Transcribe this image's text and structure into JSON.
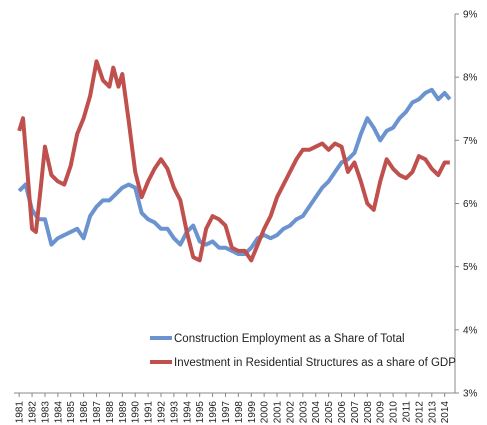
{
  "chart_data": {
    "type": "line",
    "series": [
      {
        "name": "Construction Employment as a Share of Total",
        "color": "#6b93d0",
        "x": [
          1981,
          1981.5,
          1982,
          1982.5,
          1983,
          1983.5,
          1984,
          1984.5,
          1985,
          1985.5,
          1986,
          1986.5,
          1987,
          1987.5,
          1988,
          1988.5,
          1989,
          1989.5,
          1990,
          1990.5,
          1991,
          1991.5,
          1992,
          1992.5,
          1993,
          1993.5,
          1994,
          1994.5,
          1995,
          1995.5,
          1996,
          1996.5,
          1997,
          1997.5,
          1998,
          1998.5,
          1999,
          1999.5,
          2000,
          2000.5,
          2001,
          2001.5,
          2002,
          2002.5,
          2003,
          2003.5,
          2004,
          2004.5,
          2005,
          2005.5,
          2006,
          2006.5,
          2007,
          2007.5,
          2008,
          2008.5,
          2009,
          2009.5,
          2010,
          2010.5,
          2011,
          2011.5,
          2012,
          2012.5,
          2013,
          2013.5,
          2014,
          2014.4
        ],
        "values": [
          6.2,
          6.3,
          5.9,
          5.75,
          5.75,
          5.35,
          5.45,
          5.5,
          5.55,
          5.6,
          5.45,
          5.8,
          5.95,
          6.05,
          6.05,
          6.15,
          6.25,
          6.3,
          6.25,
          5.85,
          5.75,
          5.7,
          5.6,
          5.6,
          5.45,
          5.35,
          5.55,
          5.65,
          5.4,
          5.35,
          5.4,
          5.3,
          5.3,
          5.25,
          5.2,
          5.2,
          5.3,
          5.45,
          5.5,
          5.45,
          5.5,
          5.6,
          5.65,
          5.75,
          5.8,
          5.95,
          6.1,
          6.25,
          6.35,
          6.5,
          6.65,
          6.7,
          6.8,
          7.1,
          7.35,
          7.2,
          7.0,
          7.15,
          7.2,
          7.35,
          7.45,
          7.6,
          7.65,
          7.75,
          7.8,
          7.65,
          7.75,
          7.65
        ]
      },
      {
        "name": "Investment in Residential Structures as a share of GDP",
        "color": "#c0504d",
        "x": [
          1981,
          1981.3,
          1981.6,
          1982,
          1982.3,
          1982.7,
          1983,
          1983.5,
          1984,
          1984.5,
          1985,
          1985.5,
          1986,
          1986.5,
          1987,
          1987.5,
          1988,
          1988.3,
          1988.7,
          1989,
          1989.5,
          1990,
          1990.5,
          1991,
          1991.5,
          1992,
          1992.5,
          1993,
          1993.5,
          1994,
          1994.5,
          1995,
          1995.5,
          1996,
          1996.5,
          1997,
          1997.5,
          1998,
          1998.5,
          1999,
          1999.5,
          2000,
          2000.5,
          2001,
          2001.5,
          2002,
          2002.5,
          2003,
          2003.5,
          2004,
          2004.5,
          2005,
          2005.5,
          2006,
          2006.5,
          2007,
          2007.5,
          2008,
          2008.5,
          2009,
          2009.5,
          2010,
          2010.5,
          2011,
          2011.5,
          2012,
          2012.5,
          2013,
          2013.5,
          2014,
          2014.4
        ],
        "values": [
          7.15,
          7.35,
          6.6,
          5.6,
          5.55,
          6.3,
          6.9,
          6.45,
          6.35,
          6.3,
          6.6,
          7.1,
          7.35,
          7.7,
          8.25,
          7.95,
          7.85,
          8.15,
          7.85,
          8.05,
          7.3,
          6.5,
          6.1,
          6.35,
          6.55,
          6.7,
          6.55,
          6.25,
          6.05,
          5.55,
          5.15,
          5.1,
          5.6,
          5.8,
          5.75,
          5.65,
          5.3,
          5.25,
          5.25,
          5.1,
          5.35,
          5.6,
          5.8,
          6.1,
          6.3,
          6.5,
          6.7,
          6.85,
          6.85,
          6.9,
          6.95,
          6.85,
          6.95,
          6.9,
          6.5,
          6.65,
          6.35,
          6.0,
          5.9,
          6.35,
          6.7,
          6.55,
          6.45,
          6.4,
          6.5,
          6.75,
          6.7,
          6.55,
          6.45,
          6.65,
          6.65
        ]
      }
    ],
    "xlim": [
      1980.6,
      2014.8
    ],
    "xticks": [
      1981,
      1982,
      1983,
      1984,
      1985,
      1986,
      1987,
      1988,
      1989,
      1990,
      1991,
      1992,
      1993,
      1994,
      1995,
      1996,
      1997,
      1998,
      1999,
      2000,
      2001,
      2002,
      2003,
      2004,
      2005,
      2006,
      2007,
      2008,
      2009,
      2010,
      2011,
      2012,
      2013,
      2014
    ],
    "ylim": [
      3,
      9
    ],
    "yticks": [
      {
        "value": 3,
        "label": "3%"
      },
      {
        "value": 4,
        "label": "4%"
      },
      {
        "value": 5,
        "label": "5%"
      },
      {
        "value": 6,
        "label": "6%"
      },
      {
        "value": 7,
        "label": "7%"
      },
      {
        "value": 8,
        "label": "8%"
      },
      {
        "value": 9,
        "label": "9%"
      }
    ],
    "y_axis_side": "right",
    "grid": false
  }
}
